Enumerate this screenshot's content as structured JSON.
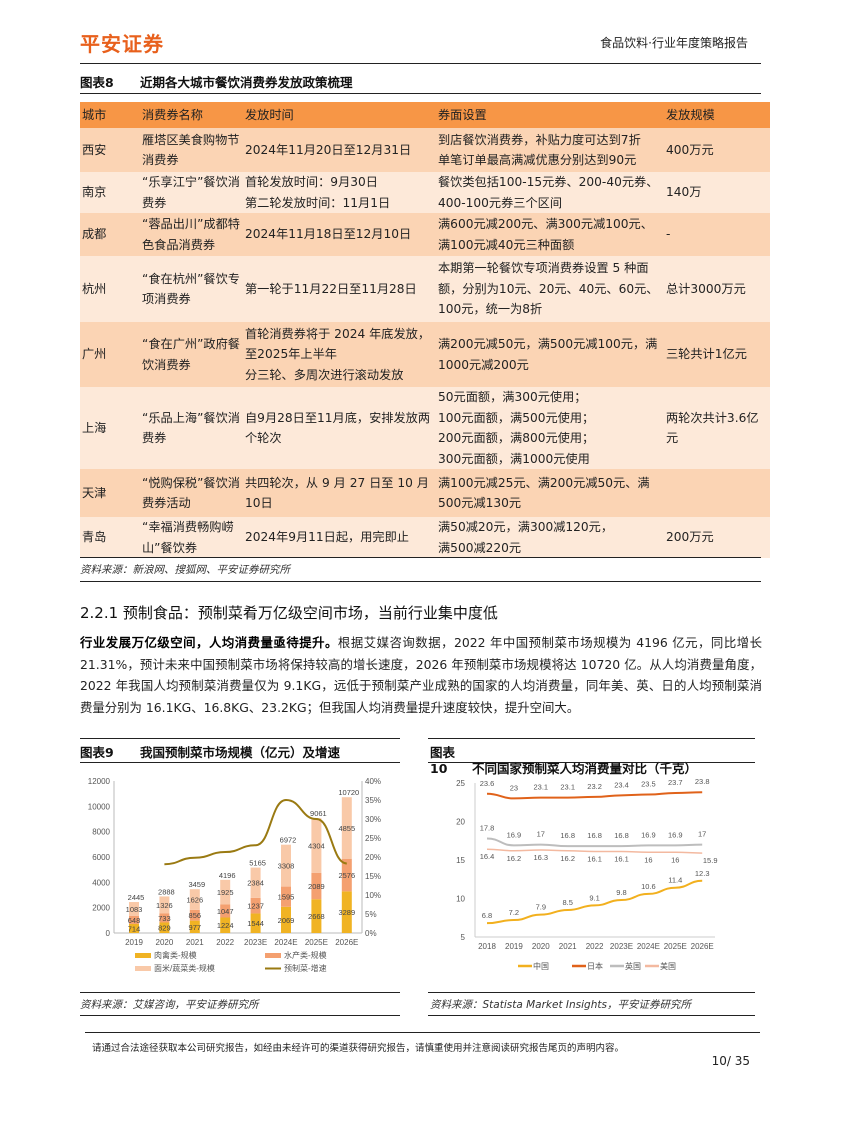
{
  "header": {
    "logo": "平安证券",
    "report_title": "食品饮料·行业年度策略报告"
  },
  "figure8": {
    "label": "图表8",
    "title": "近期各大城市餐饮消费券发放政策梳理",
    "columns": [
      "城市",
      "消费券名称",
      "发放时间",
      "券面设置",
      "发放规模"
    ],
    "rows": [
      [
        "西安",
        "雁塔区美食购物节消费券",
        "2024年11月20日至12月31日",
        "到店餐饮消费券，补贴力度可达到7折\n单笔订单最高满减优惠分别达到90元",
        "400万元"
      ],
      [
        "南京",
        "“乐享江宁”餐饮消费券",
        "首轮发放时间：9月30日\n第二轮发放时间：11月1日",
        "餐饮类包括100-15元券、200-40元券、400-100元券三个区间",
        "140万"
      ],
      [
        "成都",
        "“蓉品出川”成都特色食品消费券",
        "2024年11月18日至12月10日",
        "满600元减200元、满300元减100元、满100元减40元三种面额",
        "-"
      ],
      [
        "杭州",
        "“食在杭州”餐饮专项消费券",
        "第一轮于11月22日至11月28日",
        "本期第一轮餐饮专项消费券设置 5 种面额，分别为10元、20元、40元、60元、100元，统一为8折",
        "总计3000万元"
      ],
      [
        "广州",
        "“食在广州”政府餐饮消费券",
        "首轮消费券将于 2024 年底发放，至2025年上半年\n分三轮、多周次进行滚动发放",
        "满200元减50元，满500元减100元，满1000元减200元",
        "三轮共计1亿元"
      ],
      [
        "上海",
        "“乐品上海”餐饮消费券",
        "自9月28日至11月底，安排发放两个轮次",
        "50元面额，满300元使用；\n100元面额，满500元使用；\n200元面额，满800元使用；\n300元面额，满1000元使用",
        "两轮次共计3.6亿元"
      ],
      [
        "天津",
        "“悦购保税”餐饮消费券活动",
        "共四轮次，从 9 月 27 日至 10 月10日",
        "满100元减25元、满200元减50元、满500元减130元",
        ""
      ],
      [
        "青岛",
        "“幸福消费畅购崂山”餐饮券",
        "2024年9月11日起，用完即止",
        "满50减20元，满300减120元，\n满500减220元",
        "200万元"
      ]
    ],
    "source": "资料来源：新浪网、搜狐网、平安证券研究所"
  },
  "section": {
    "heading": "2.2.1 预制食品：预制菜肴万亿级空间市场，当前行业集中度低",
    "lead": "行业发展万亿级空间，人均消费量亟待提升。",
    "body": "根据艾媒咨询数据，2022 年中国预制菜市场规模为 4196 亿元，同比增长 21.31%，预计未来中国预制菜市场将保持较高的增长速度，2026 年预制菜市场规模将达 10720 亿。从人均消费量角度，2022 年我国人均预制菜消费量仅为 9.1KG，远低于预制菜产业成熟的国家的人均消费量，同年美、英、日的人均预制菜消费量分别为 16.1KG、16.8KG、23.2KG；但我国人均消费量提升速度较快，提升空间大。"
  },
  "figure9": {
    "label": "图表9",
    "title": "我国预制菜市场规模（亿元）及增速",
    "source": "资料来源：艾媒咨询，平安证券研究所"
  },
  "figure10": {
    "label": "图表10",
    "title": "不同国家预制菜人均消费量对比（千克）",
    "source": "资料来源：Statista Market Insights，平安证券研究所"
  },
  "chart_data": [
    {
      "type": "bar",
      "stacked": true,
      "categories": [
        "2019",
        "2020",
        "2021",
        "2022",
        "2023E",
        "2024E",
        "2025E",
        "2026E"
      ],
      "series": [
        {
          "name": "肉禽类-规模",
          "color": "#F0B323",
          "values": [
            714,
            829,
            977,
            1224,
            1544,
            2069,
            2668,
            3289
          ]
        },
        {
          "name": "水产类-规模",
          "color": "#F4A070",
          "values": [
            648,
            733,
            856,
            1047,
            1237,
            1595,
            2089,
            2576
          ]
        },
        {
          "name": "面米/蔬菜类-规模",
          "color": "#F9C9A8",
          "values": [
            1083,
            1326,
            1626,
            1925,
            2384,
            3308,
            4304,
            4855
          ]
        }
      ],
      "totals": [
        2445,
        2888,
        3459,
        4196,
        5165,
        6972,
        9061,
        10720
      ],
      "line": {
        "name": "预制菜-增速",
        "color": "#9A7A12",
        "axis": "right",
        "values": [
          null,
          18.1,
          19.8,
          21.3,
          23.1,
          35.0,
          30.0,
          18.3
        ]
      },
      "ylim": [
        0,
        12000
      ],
      "yticks": [
        "0",
        "2000",
        "4000",
        "6000",
        "8000",
        "10000",
        "12000"
      ],
      "y2lim": [
        0,
        40
      ],
      "y2ticks": [
        "0%",
        "5%",
        "10%",
        "15%",
        "20%",
        "25%",
        "30%",
        "35%",
        "40%"
      ],
      "grid": false,
      "legend": "bottom"
    },
    {
      "type": "line",
      "categories": [
        "2018",
        "2019",
        "2020",
        "2021",
        "2022",
        "2023E",
        "2024E",
        "2025E",
        "2026E"
      ],
      "series": [
        {
          "name": "中国",
          "color": "#F2B01E",
          "values": [
            6.8,
            7.2,
            7.9,
            8.5,
            9.1,
            9.8,
            10.6,
            11.4,
            12.3
          ],
          "labels": "above"
        },
        {
          "name": "日本",
          "color": "#E0621A",
          "values": [
            23.6,
            23,
            23.1,
            23.1,
            23.2,
            23.4,
            23.5,
            23.7,
            23.8
          ],
          "labels": "above"
        },
        {
          "name": "英国",
          "color": "#BDBDBD",
          "values": [
            17.8,
            16.9,
            17,
            16.8,
            16.8,
            16.8,
            16.9,
            16.9,
            17
          ],
          "labels": "above"
        },
        {
          "name": "美国",
          "color": "#F3B9A0",
          "values": [
            16.4,
            16.2,
            16.3,
            16.2,
            16.1,
            16.1,
            16,
            16,
            15.9
          ],
          "labels": "below"
        }
      ],
      "ylim": [
        5,
        25
      ],
      "yticks": [
        "5",
        "10",
        "15",
        "20",
        "25"
      ],
      "grid": false,
      "legend": "bottom"
    }
  ],
  "footer": {
    "disclaimer": "请通过合法途径获取本公司研究报告，如经由未经许可的渠道获得研究报告，请慎重使用并注意阅读研究报告尾页的声明内容。",
    "page": "10/ 35"
  }
}
